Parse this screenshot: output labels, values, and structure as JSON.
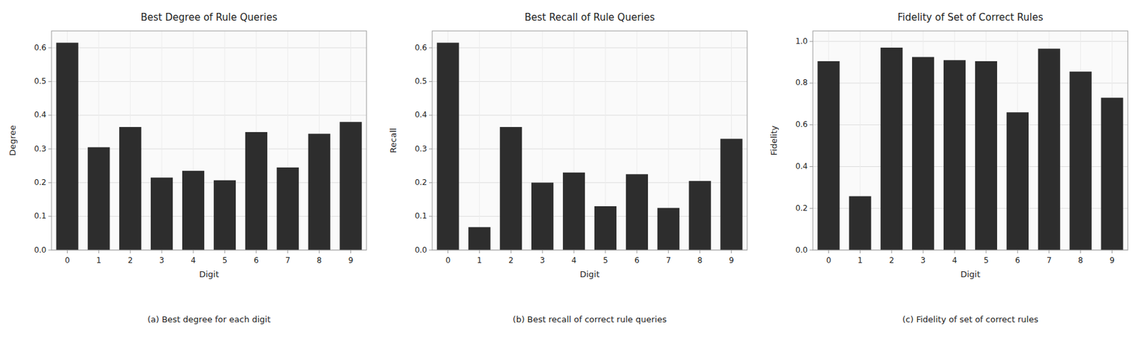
{
  "chart_data": [
    {
      "type": "bar",
      "title": "Best Degree of Rule Queries",
      "x_label": "Digit",
      "y_label": "Degree",
      "caption": "(a) Best degree for each digit",
      "categories": [
        "0",
        "1",
        "2",
        "3",
        "4",
        "5",
        "6",
        "7",
        "8",
        "9"
      ],
      "values": [
        0.615,
        0.305,
        0.365,
        0.215,
        0.235,
        0.207,
        0.35,
        0.245,
        0.345,
        0.38
      ],
      "color": "#2d2d2d",
      "ylim": [
        0.0,
        0.65
      ],
      "yticks": [
        {
          "value": 0,
          "label": "0.0"
        },
        0.1,
        0.2,
        0.3,
        0.4,
        0.5,
        0.6
      ],
      "grid": true
    },
    {
      "type": "bar",
      "title": "Best Recall of Rule Queries",
      "x_label": "Digit",
      "y_label": "Recall",
      "caption": "(b) Best recall of correct rule queries",
      "categories": [
        "0",
        "1",
        "2",
        "3",
        "4",
        "5",
        "6",
        "7",
        "8",
        "9"
      ],
      "values": [
        0.615,
        0.068,
        0.365,
        0.2,
        0.23,
        0.13,
        0.225,
        0.125,
        0.205,
        0.33
      ],
      "color": "#2d2d2d",
      "ylim": [
        0.0,
        0.65
      ],
      "yticks": [
        {
          "value": 0,
          "label": "0.0"
        },
        0.1,
        0.2,
        0.3,
        0.4,
        0.5,
        0.6
      ],
      "grid": true
    },
    {
      "type": "bar",
      "title": "Fidelity of Set of Correct Rules",
      "x_label": "Digit",
      "y_label": "Fidelity",
      "caption": "(c) Fidelity of set of correct rules",
      "categories": [
        "0",
        "1",
        "2",
        "3",
        "4",
        "5",
        "6",
        "7",
        "8",
        "9"
      ],
      "values": [
        0.905,
        0.258,
        0.97,
        0.925,
        0.91,
        0.905,
        0.66,
        0.965,
        0.855,
        0.73
      ],
      "color": "#2d2d2d",
      "ylim": [
        0.0,
        1.05
      ],
      "yticks": [
        {
          "value": 0,
          "label": "0.0"
        },
        0.2,
        0.4,
        0.6,
        0.8,
        {
          "value": 1,
          "label": "1.0"
        }
      ],
      "grid": true
    }
  ]
}
